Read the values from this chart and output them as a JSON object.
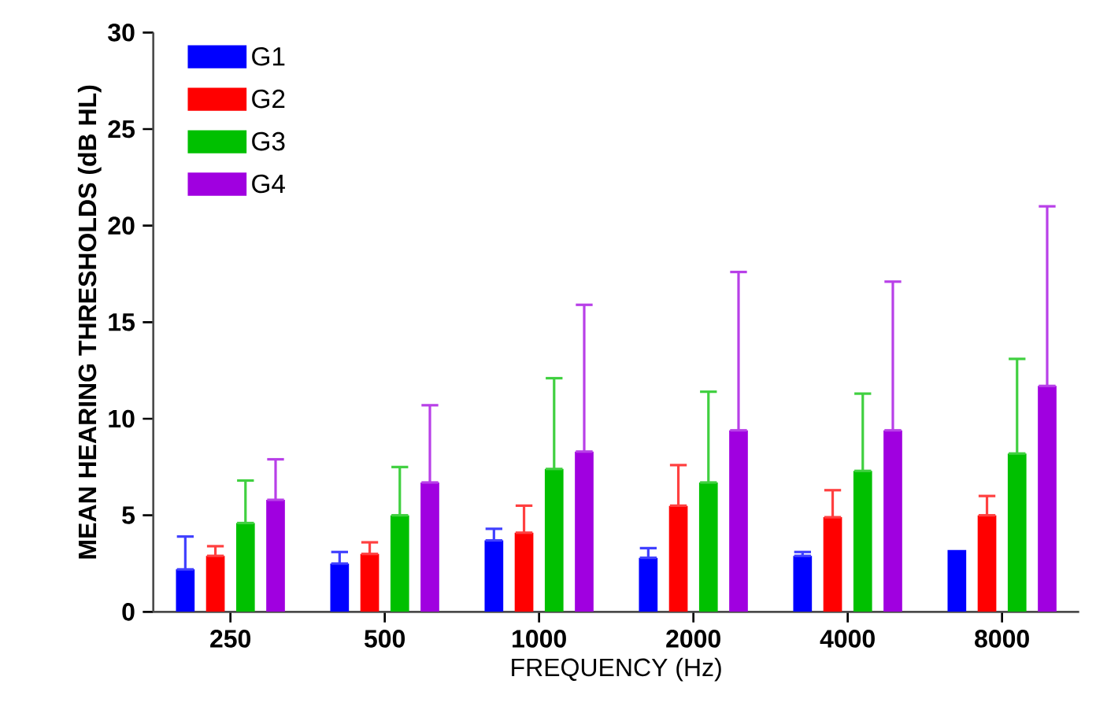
{
  "chart_data": {
    "type": "bar",
    "xlabel": "FREQUENCY (Hz)",
    "ylabel": "MEAN HEARING THRESHOLDS (dB HL)",
    "categories": [
      "250",
      "500",
      "1000",
      "2000",
      "4000",
      "8000"
    ],
    "series": [
      {
        "name": "G1",
        "color": "#0000ff",
        "values": [
          2.2,
          2.5,
          3.7,
          2.8,
          2.9,
          3.2
        ],
        "errors": [
          [
            2.2,
            3.9
          ],
          [
            2.5,
            3.1
          ],
          [
            3.7,
            4.3
          ],
          [
            2.8,
            3.3
          ],
          [
            2.9,
            3.1
          ],
          null
        ]
      },
      {
        "name": "G2",
        "color": "#ff0000",
        "values": [
          2.9,
          3.0,
          4.1,
          5.5,
          4.9,
          5.0
        ],
        "errors": [
          [
            2.9,
            3.4
          ],
          [
            3.0,
            3.6
          ],
          [
            4.1,
            5.5
          ],
          [
            5.5,
            7.6
          ],
          [
            4.9,
            6.3
          ],
          [
            5.0,
            6.0
          ]
        ]
      },
      {
        "name": "G3",
        "color": "#00c000",
        "values": [
          4.6,
          5.0,
          7.4,
          6.7,
          7.3,
          8.2
        ],
        "errors": [
          [
            4.6,
            6.8
          ],
          [
            5.0,
            7.5
          ],
          [
            7.4,
            12.1
          ],
          [
            6.7,
            11.4
          ],
          [
            7.3,
            11.3
          ],
          [
            8.2,
            13.1
          ]
        ]
      },
      {
        "name": "G4",
        "color": "#a000e0",
        "values": [
          5.8,
          6.7,
          8.3,
          9.4,
          9.4,
          11.7
        ],
        "errors": [
          [
            5.8,
            7.9
          ],
          [
            6.7,
            10.7
          ],
          [
            8.3,
            15.9
          ],
          [
            9.4,
            17.6
          ],
          [
            9.4,
            17.1
          ],
          [
            11.7,
            21.0
          ]
        ]
      }
    ],
    "ylim": [
      0,
      30
    ],
    "yticks": [
      0,
      5,
      10,
      15,
      20,
      25,
      30
    ],
    "legend": "top left",
    "grid": false
  }
}
